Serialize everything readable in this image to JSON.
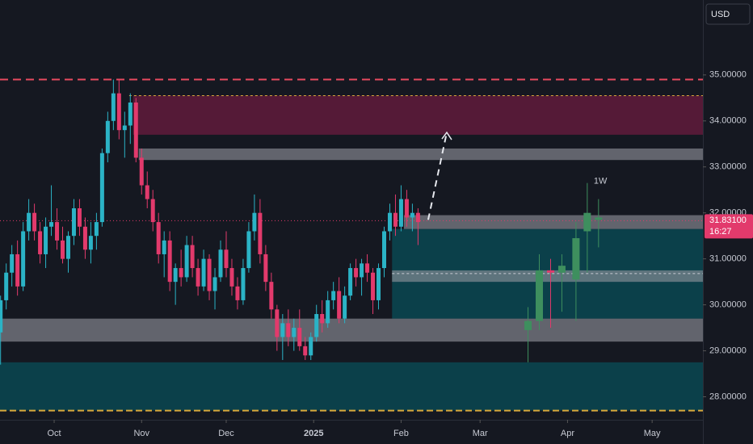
{
  "chart_data": {
    "type": "candlestick",
    "currency": "USD",
    "xlim": [
      -19.2,
      230
    ],
    "ylim": [
      27.5,
      36.63
    ],
    "xticks": [
      {
        "value": 0,
        "label": "Oct"
      },
      {
        "value": 31,
        "label": "Nov"
      },
      {
        "value": 61,
        "label": "Dec"
      },
      {
        "value": 92,
        "label": "2025"
      },
      {
        "value": 123,
        "label": "Feb"
      },
      {
        "value": 151,
        "label": "Mar"
      },
      {
        "value": 182,
        "label": "Apr"
      },
      {
        "value": 212,
        "label": "May"
      }
    ],
    "yticks": [
      {
        "value": 35,
        "label": "35.00000"
      },
      {
        "value": 34,
        "label": "34.00000"
      },
      {
        "value": 33,
        "label": "33.00000"
      },
      {
        "value": 32,
        "label": "32.00000"
      },
      {
        "value": 31,
        "label": "31.00000"
      },
      {
        "value": 30,
        "label": "30.00000"
      },
      {
        "value": 29,
        "label": "29.00000"
      },
      {
        "value": 28,
        "label": "28.00000"
      }
    ],
    "up_color": "#2bb3c6",
    "down_color": "#e23a6c",
    "daily": {
      "x": [
        -19,
        -17,
        -15,
        -13,
        -11,
        -9,
        -7,
        -5,
        -3,
        -1,
        1,
        3,
        5,
        7,
        9,
        11,
        13,
        15,
        17,
        19,
        21,
        23,
        25,
        27,
        29,
        31,
        33,
        35,
        37,
        39,
        41,
        43,
        45,
        47,
        49,
        51,
        53,
        55,
        57,
        59,
        61,
        63,
        65,
        67,
        69,
        71,
        73,
        75,
        77,
        79,
        81,
        83,
        85,
        87,
        89,
        91,
        93,
        95,
        97,
        99,
        101,
        103,
        105,
        107,
        109,
        111,
        113,
        115,
        117,
        119,
        121,
        123,
        125,
        127,
        129
      ],
      "open": [
        29.4,
        30.1,
        30.7,
        31.1,
        30.4,
        31.6,
        32.0,
        31.6,
        31.1,
        31.7,
        31.8,
        31.4,
        31.0,
        31.5,
        32.1,
        31.7,
        31.2,
        31.5,
        31.8,
        33.3,
        34.0,
        34.6,
        33.8,
        33.9,
        34.4,
        33.2,
        32.6,
        32.3,
        31.8,
        31.1,
        31.4,
        30.5,
        30.8,
        30.6,
        31.3,
        30.8,
        30.4,
        31.0,
        30.3,
        30.6,
        31.2,
        30.8,
        30.4,
        30.1,
        30.8,
        31.6,
        32.0,
        31.1,
        30.5,
        29.9,
        29.3,
        29.6,
        29.3,
        29.5,
        29.1,
        28.9,
        29.3,
        29.8,
        29.6,
        30.1,
        30.3,
        29.7,
        30.2,
        30.8,
        30.6,
        30.9,
        30.7,
        30.1,
        30.8,
        31.6,
        32.0,
        31.7,
        32.3,
        31.9,
        32.0
      ],
      "high": [
        30.2,
        30.9,
        31.3,
        31.4,
        31.8,
        32.3,
        32.2,
        31.8,
        31.9,
        32.6,
        32.1,
        31.7,
        31.6,
        32.3,
        32.3,
        31.9,
        31.8,
        32.0,
        33.4,
        34.2,
        34.9,
        34.9,
        34.2,
        34.6,
        34.5,
        33.4,
        32.9,
        32.5,
        32.0,
        31.6,
        31.6,
        30.9,
        31.2,
        31.5,
        31.5,
        31.0,
        31.2,
        31.1,
        30.8,
        31.4,
        31.6,
        31.0,
        30.6,
        31.0,
        31.8,
        32.4,
        32.3,
        31.3,
        30.7,
        30.0,
        29.8,
        29.9,
        29.7,
        29.9,
        29.3,
        29.4,
        30.0,
        30.1,
        30.3,
        30.5,
        30.6,
        30.4,
        30.9,
        31.0,
        31.0,
        31.1,
        30.8,
        30.9,
        31.7,
        32.2,
        32.4,
        32.6,
        32.5,
        32.2,
        32.1
      ],
      "low": [
        28.7,
        29.9,
        30.4,
        30.2,
        30.3,
        31.4,
        31.4,
        30.9,
        30.8,
        31.5,
        31.2,
        30.9,
        30.7,
        31.3,
        31.5,
        31.0,
        30.9,
        31.2,
        31.7,
        33.1,
        33.8,
        33.6,
        33.2,
        33.5,
        33.1,
        32.4,
        32.1,
        31.6,
        30.9,
        30.6,
        30.3,
        30.0,
        30.4,
        30.5,
        30.6,
        30.2,
        30.3,
        30.1,
        29.9,
        30.5,
        30.6,
        30.2,
        29.9,
        30.0,
        30.7,
        31.4,
        30.9,
        30.3,
        29.7,
        29.0,
        28.8,
        29.1,
        29.0,
        29.0,
        28.8,
        28.8,
        29.2,
        29.4,
        29.5,
        29.9,
        29.6,
        29.6,
        30.1,
        30.4,
        30.2,
        30.5,
        29.8,
        29.9,
        30.6,
        31.4,
        31.5,
        31.6,
        31.7,
        31.6,
        31.3
      ],
      "close": [
        30.1,
        30.7,
        31.1,
        30.4,
        31.6,
        32.0,
        31.6,
        31.1,
        31.7,
        31.8,
        31.4,
        31.0,
        31.5,
        32.1,
        31.7,
        31.2,
        31.5,
        31.8,
        33.3,
        34.0,
        34.6,
        33.8,
        33.9,
        34.4,
        33.2,
        32.6,
        32.3,
        31.8,
        31.1,
        31.4,
        30.5,
        30.8,
        30.6,
        31.3,
        30.8,
        30.4,
        31.0,
        30.3,
        30.6,
        31.2,
        30.8,
        30.4,
        30.1,
        30.8,
        31.6,
        32.0,
        31.1,
        30.5,
        29.9,
        29.3,
        29.6,
        29.3,
        29.5,
        29.1,
        28.9,
        29.3,
        29.8,
        29.6,
        30.1,
        30.3,
        29.7,
        30.2,
        30.8,
        30.6,
        30.9,
        30.7,
        30.1,
        30.8,
        31.6,
        32.0,
        31.7,
        32.3,
        31.9,
        32.0,
        31.8
      ]
    },
    "weekly_label": "1W",
    "weekly": {
      "x": [
        168,
        172,
        176,
        180,
        185,
        189,
        193
      ],
      "open": [
        29.45,
        29.65,
        30.75,
        30.7,
        30.55,
        31.6,
        31.85
      ],
      "high": [
        29.95,
        31.1,
        31.0,
        31.1,
        31.8,
        32.65,
        32.3
      ],
      "low": [
        28.75,
        29.45,
        29.5,
        29.85,
        29.65,
        30.7,
        31.25
      ],
      "close": [
        29.65,
        30.75,
        30.7,
        30.85,
        31.45,
        32.0,
        31.9
      ],
      "up_color": "#3e8f5e",
      "down_color": "#e23a6c"
    },
    "zones": [
      {
        "low": 33.7,
        "high": 34.55,
        "x0": 28,
        "color": "rgba(150,28,78,0.5)"
      },
      {
        "low": 33.15,
        "high": 33.4,
        "x0": 30,
        "color": "rgba(150,152,160,0.6)"
      },
      {
        "low": 29.7,
        "high": 31.65,
        "x0": 119.8,
        "color": "rgba(0,112,124,0.45)"
      },
      {
        "low": 31.65,
        "high": 31.95,
        "x0": 124,
        "color": "rgba(150,152,160,0.6)"
      },
      {
        "low": 30.5,
        "high": 30.75,
        "x0": 119.8,
        "color": "rgba(150,152,160,0.6)"
      },
      {
        "low": 29.2,
        "high": 29.7,
        "color": "rgba(150,152,160,0.6)"
      },
      {
        "low": 27.7,
        "high": 28.75,
        "color": "rgba(0,112,124,0.45)"
      }
    ],
    "lines": [
      {
        "value": 34.9,
        "color": "#e84a5f",
        "dash": "10 6",
        "width": 2
      },
      {
        "value": 34.55,
        "x0": 26.6,
        "color": "#d9a93c",
        "dash": "3 3",
        "width": 1
      },
      {
        "value": 30.68,
        "x0": 119.8,
        "color": "#c9ccd4",
        "dash": "3 3",
        "width": 1
      },
      {
        "value": 27.7,
        "color": "#d9a93c",
        "dash": "8 4",
        "width": 2
      }
    ],
    "arrow": {
      "x": [
        132.6,
        139.2
      ],
      "y": [
        31.85,
        33.75
      ]
    },
    "last_price": {
      "value": 31.831,
      "label": "31.83100",
      "countdown": "16:27",
      "color": "#e23a6c"
    }
  }
}
